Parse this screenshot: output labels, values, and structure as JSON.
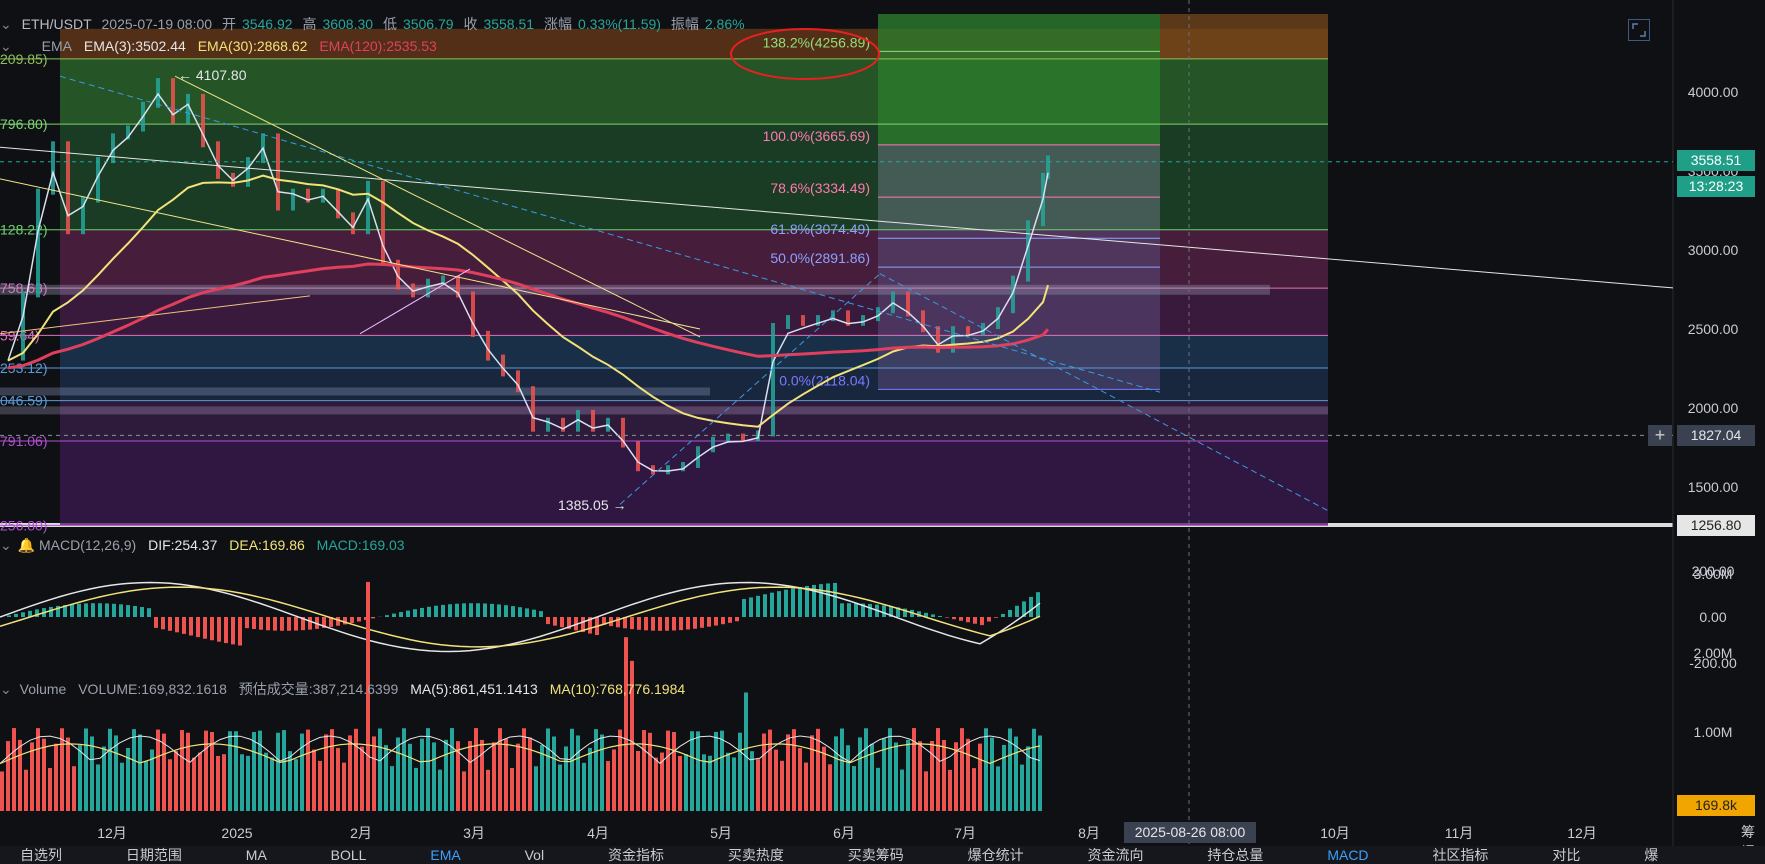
{
  "header": {
    "symbol": "ETH/USDT",
    "datetime": "2025-07-19 08:00",
    "open_label": "开",
    "open": "3546.92",
    "high_label": "高",
    "high": "3608.30",
    "low_label": "低",
    "low": "3506.79",
    "close_label": "收",
    "close": "3558.51",
    "change_label": "涨幅",
    "change": "0.33%(11.59)",
    "amp_label": "振幅",
    "amp": "2.86%"
  },
  "ema": {
    "name": "EMA",
    "ema3": "EMA(3):3502.44",
    "ema30": "EMA(30):2868.62",
    "ema120": "EMA(120):2535.53"
  },
  "macd": {
    "name": "MACD(12,26,9)",
    "dif": "DIF:254.37",
    "dea": "DEA:169.86",
    "macd": "MACD:169.03"
  },
  "volume": {
    "name": "Volume",
    "volume": "VOLUME:169,832.1618",
    "est": "预估成交量:387,214.6399",
    "ma5": "MA(5):861,451.1413",
    "ma10": "MA(10):768,776.1984"
  },
  "price_axis": [
    "4000.00",
    "3500.00",
    "3000.00",
    "2500.00",
    "2000.00",
    "1500.00"
  ],
  "macd_axis": [
    "200.00",
    "0.00",
    "-200.00"
  ],
  "volume_axis": [
    "3.00M",
    "2.00M",
    "1.00M"
  ],
  "time_axis": [
    "12月",
    "2025",
    "2月",
    "3月",
    "4月",
    "5月",
    "6月",
    "7月",
    "8月",
    "10月",
    "11月",
    "12月"
  ],
  "crosshair_time": "2025-08-26 08:00",
  "axis_corner": "筹 爆",
  "tags": {
    "last_price": "3558.51",
    "countdown": "13:28:23",
    "crosshair_price": "1827.04",
    "bottom_price": "1256.80",
    "volume_last": "169.8k"
  },
  "fib_right": [
    {
      "label": "138.2%(4256.89)",
      "price": 4256.89
    },
    {
      "label": "100.0%(3665.69)",
      "price": 3665.69
    },
    {
      "label": "78.6%(3334.49)",
      "price": 3334.49
    },
    {
      "label": "61.8%(3074.49)",
      "price": 3074.49
    },
    {
      "label": "50.0%(2891.86)",
      "price": 2891.86
    },
    {
      "label": "0.0%(2118.04)",
      "price": 2118.04
    }
  ],
  "fib_left": [
    {
      "label": "209.85)",
      "price": 4209.85
    },
    {
      "label": "796.80)",
      "price": 3796.8
    },
    {
      "label": "128.22)",
      "price": 3128.22
    },
    {
      "label": "758.63)",
      "price": 2758.63
    },
    {
      "label": "59.64)",
      "price": 2459.64
    },
    {
      "label": "253.12)",
      "price": 2253.12
    },
    {
      "label": "046.59)",
      "price": 2046.59
    },
    {
      "label": "791.06)",
      "price": 1791.06
    },
    {
      "label": "256.80)",
      "price": 1256.8
    }
  ],
  "annotations": {
    "high": "← 4107.80",
    "low": "1385.05 →"
  },
  "bottom_tabs": [
    "自选列",
    "日期范围",
    "MA",
    "BOLL",
    "EMA",
    "Vol",
    "资金指标",
    "买卖热度",
    "买卖筹码",
    "爆仓统计",
    "资金流向",
    "持仓总量",
    "MACD",
    "社区指标",
    "对比",
    "爆"
  ],
  "colors": {
    "bg": "#0e1014",
    "up": "#26a69a",
    "down": "#ef5350",
    "ema3": "#e6e6e6",
    "ema30": "#f1e27a",
    "ema120": "#e0405e",
    "accent_teal": "#1f9f87",
    "crosshair_tag": "#3a4150",
    "volume_tag": "#f0a500"
  }
}
